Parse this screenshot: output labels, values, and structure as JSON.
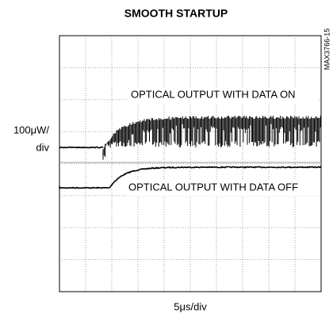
{
  "title": "SMOOTH STARTUP",
  "y_label": [
    "100μW/",
    "div"
  ],
  "x_label": "5μs/div",
  "figure_id": "MAX3766-15",
  "annotations": [
    "OPTICAL OUTPUT WITH DATA ON",
    "OPTICAL OUTPUT WITH DATA OFF"
  ]
}
